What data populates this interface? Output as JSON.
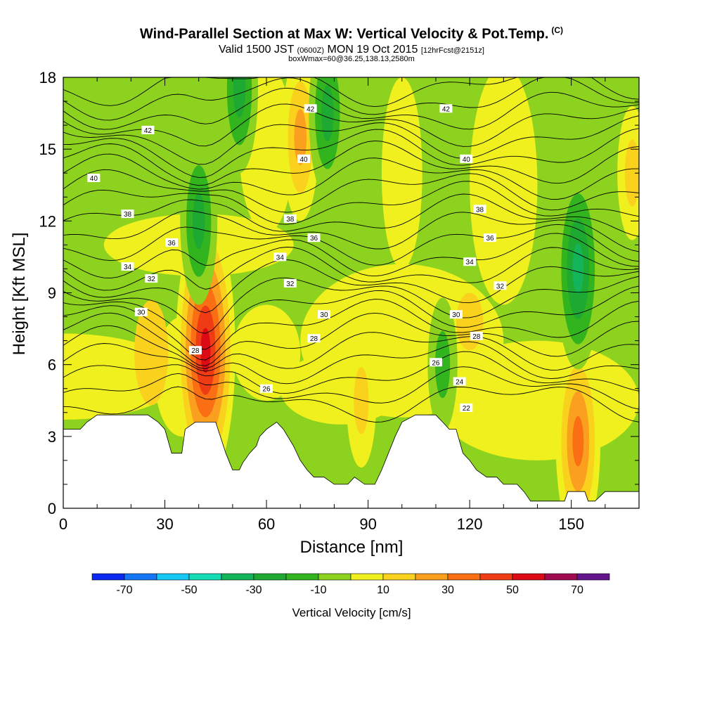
{
  "chart_data": {
    "type": "heatmap",
    "title": "Wind-Parallel Section at Max W: Vertical Velocity & Pot.Temp.",
    "title_tag": "(C)",
    "subtitle_main": "Valid 1500 JST ",
    "subtitle_small1": "(0600Z)",
    "subtitle_rest": " MON 19 Oct 2015 ",
    "subtitle_small2": "[12hrFcst@2151z]",
    "subtitle2": "boxWmax=60@36.25,138.13,2580m",
    "xlabel": "Distance [nm]",
    "ylabel": "Height [Kft MSL]",
    "xlim": [
      0,
      170
    ],
    "ylim": [
      0,
      18
    ],
    "xticks": [
      0,
      30,
      60,
      90,
      120,
      150
    ],
    "yticks": [
      0,
      3,
      6,
      9,
      12,
      15,
      18
    ],
    "colorbar": {
      "label": "Vertical Velocity [cm/s]",
      "bounds": [
        -80,
        -70,
        -60,
        -50,
        -40,
        -30,
        -20,
        -10,
        0,
        10,
        20,
        30,
        40,
        50,
        60,
        70,
        80
      ],
      "colors": [
        "#0a28f0",
        "#1476f5",
        "#14c8f5",
        "#14dcb4",
        "#14b45a",
        "#1eaa32",
        "#32b41e",
        "#8cd21e",
        "#f0f01e",
        "#fad21e",
        "#faa01e",
        "#fa6e14",
        "#f03c14",
        "#dc0a14",
        "#a00a50",
        "#64148c"
      ],
      "tick_labels": [
        -70,
        -50,
        -30,
        -10,
        10,
        30,
        50,
        70
      ]
    },
    "features": [
      {
        "x": 42,
        "y": 6.6,
        "value": 60
      },
      {
        "x": 70,
        "y": 15.5,
        "value": 30
      },
      {
        "x": 152,
        "y": 2.8,
        "value": 35
      },
      {
        "x": 88,
        "y": 4.5,
        "value": 15
      },
      {
        "x": 52,
        "y": 17.5,
        "value": -30
      },
      {
        "x": 78,
        "y": 16.5,
        "value": -30
      },
      {
        "x": 40,
        "y": 12,
        "value": -25
      },
      {
        "x": 152,
        "y": 10,
        "value": -35
      },
      {
        "x": 112,
        "y": 6,
        "value": -15
      },
      {
        "x": 8,
        "y": 12,
        "value": -12
      },
      {
        "x": 168,
        "y": 14,
        "value": 18
      }
    ],
    "terrain": [
      [
        0,
        3.3
      ],
      [
        5,
        3.3
      ],
      [
        7,
        3.6
      ],
      [
        10,
        3.9
      ],
      [
        25,
        3.9
      ],
      [
        28,
        3.6
      ],
      [
        30,
        3.3
      ],
      [
        32,
        2.3
      ],
      [
        35,
        2.3
      ],
      [
        36,
        3.3
      ],
      [
        39,
        3.6
      ],
      [
        45,
        3.6
      ],
      [
        48,
        2.3
      ],
      [
        50,
        1.6
      ],
      [
        52,
        1.6
      ],
      [
        53,
        1.9
      ],
      [
        55,
        2.3
      ],
      [
        57,
        2.6
      ],
      [
        58,
        3.0
      ],
      [
        60,
        3.3
      ],
      [
        63,
        3.6
      ],
      [
        65,
        3.3
      ],
      [
        68,
        2.6
      ],
      [
        70,
        2.0
      ],
      [
        72,
        1.6
      ],
      [
        74,
        1.3
      ],
      [
        77,
        1.3
      ],
      [
        80,
        1.0
      ],
      [
        84,
        1.0
      ],
      [
        86,
        1.3
      ],
      [
        89,
        1.0
      ],
      [
        92,
        1.0
      ],
      [
        94,
        1.6
      ],
      [
        96,
        2.3
      ],
      [
        98,
        3.0
      ],
      [
        100,
        3.6
      ],
      [
        104,
        3.9
      ],
      [
        110,
        3.9
      ],
      [
        112,
        3.6
      ],
      [
        114,
        3.3
      ],
      [
        116,
        3.3
      ],
      [
        118,
        2.3
      ],
      [
        120,
        2.0
      ],
      [
        122,
        1.6
      ],
      [
        125,
        1.3
      ],
      [
        128,
        1.3
      ],
      [
        130,
        1.0
      ],
      [
        134,
        1.0
      ],
      [
        136,
        0.7
      ],
      [
        138,
        0.3
      ],
      [
        148,
        0.3
      ],
      [
        149,
        0.7
      ],
      [
        154,
        0.7
      ],
      [
        155,
        0.3
      ],
      [
        157,
        0.3
      ],
      [
        160,
        0.7
      ],
      [
        170,
        0.7
      ]
    ],
    "theta_contours": [
      {
        "label": "22",
        "x": 119,
        "y": 4.2
      },
      {
        "label": "24",
        "x": 117,
        "y": 5.3
      },
      {
        "label": "26",
        "x": 60,
        "y": 5.0
      },
      {
        "label": "26",
        "x": 110,
        "y": 6.1
      },
      {
        "label": "28",
        "x": 39,
        "y": 6.6
      },
      {
        "label": "28",
        "x": 74,
        "y": 7.1
      },
      {
        "label": "28",
        "x": 122,
        "y": 7.2
      },
      {
        "label": "30",
        "x": 23,
        "y": 8.2
      },
      {
        "label": "30",
        "x": 77,
        "y": 8.1
      },
      {
        "label": "30",
        "x": 116,
        "y": 8.1
      },
      {
        "label": "32",
        "x": 26,
        "y": 9.6
      },
      {
        "label": "32",
        "x": 67,
        "y": 9.4
      },
      {
        "label": "32",
        "x": 129,
        "y": 9.3
      },
      {
        "label": "34",
        "x": 19,
        "y": 10.1
      },
      {
        "label": "34",
        "x": 64,
        "y": 10.5
      },
      {
        "label": "34",
        "x": 120,
        "y": 10.3
      },
      {
        "label": "36",
        "x": 32,
        "y": 11.1
      },
      {
        "label": "36",
        "x": 74,
        "y": 11.3
      },
      {
        "label": "36",
        "x": 126,
        "y": 11.3
      },
      {
        "label": "38",
        "x": 19,
        "y": 12.3
      },
      {
        "label": "38",
        "x": 67,
        "y": 12.1
      },
      {
        "label": "38",
        "x": 123,
        "y": 12.5
      },
      {
        "label": "40",
        "x": 9,
        "y": 13.8
      },
      {
        "label": "40",
        "x": 71,
        "y": 14.6
      },
      {
        "label": "40",
        "x": 119,
        "y": 14.6
      },
      {
        "label": "42",
        "x": 25,
        "y": 15.8
      },
      {
        "label": "42",
        "x": 73,
        "y": 16.7
      },
      {
        "label": "42",
        "x": 113,
        "y": 16.7
      }
    ]
  }
}
